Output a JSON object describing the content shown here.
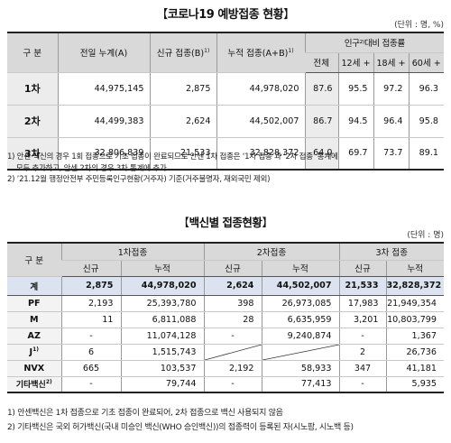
{
  "section1": {
    "title": "코로나19 예방접종 현황",
    "unit": "(단위 : 명, %)",
    "headers": {
      "category": "구 분",
      "prev_total": "전일 누계(A)",
      "new": "신규 접종(B)",
      "new_sup": "1)",
      "cumulative": "누적 접종(A+B)",
      "cumulative_sup": "1)",
      "rate_group": "인구²⁾대비 접종률",
      "rate_all": "전체",
      "rate_12": "12세 +",
      "rate_18": "18세 +",
      "rate_60": "60세 +"
    },
    "rows": [
      {
        "label": "1차",
        "prev": "44,975,145",
        "new": "2,875",
        "cum": "44,978,020",
        "all": "87.6",
        "r12": "95.5",
        "r18": "97.2",
        "r60": "96.3"
      },
      {
        "label": "2차",
        "prev": "44,499,383",
        "new": "2,624",
        "cum": "44,502,007",
        "all": "86.7",
        "r12": "94.5",
        "r18": "96.4",
        "r60": "95.8"
      },
      {
        "label": "3차",
        "prev": "32,806,839",
        "new": "21,533",
        "cum": "32,828,372",
        "all": "64.0",
        "r12": "69.7",
        "r18": "73.7",
        "r60": "89.1"
      }
    ],
    "notes": [
      "1) 안센 백신의 경우 1회 접종으로 기초 접종이 완료되므로 안센 1차 접종은 ‘1차 접종’과 ‘2차 접종’ 통계에",
      "    모두 추가하고, 안센 2차의 경우 3차 통계에 추가",
      "2) ’21.12월 행정안전부 주민등록인구현황(거주자) 기준(거주불명자, 재외국민 제외)"
    ]
  },
  "section2": {
    "title": "백신별 접종현황",
    "unit": "(단위 : 명)",
    "headers": {
      "category": "구 분",
      "dose1": "1차접종",
      "dose2": "2차접종",
      "dose3": "3차 접종",
      "new": "신규",
      "cum": "누적"
    },
    "rows": [
      {
        "label": "계",
        "sup": "",
        "d1n": "2,875",
        "d1c": "44,978,020",
        "d2n": "2,624",
        "d2c": "44,502,007",
        "d3n": "21,533",
        "d3c": "32,828,372"
      },
      {
        "label": "PF",
        "sup": "",
        "d1n": "2,193",
        "d1c": "25,393,780",
        "d2n": "398",
        "d2c": "26,973,085",
        "d3n": "17,983",
        "d3c": "21,949,354"
      },
      {
        "label": "M",
        "sup": "",
        "d1n": "11",
        "d1c": "6,811,088",
        "d2n": "28",
        "d2c": "6,635,959",
        "d3n": "3,201",
        "d3c": "10,803,799"
      },
      {
        "label": "AZ",
        "sup": "",
        "d1n": "-",
        "d1c": "11,074,128",
        "d2n": "-",
        "d2c": "9,240,874",
        "d3n": "-",
        "d3c": "1,367"
      },
      {
        "label": "J",
        "sup": "1)",
        "d1n": "6",
        "d1c": "1,515,743",
        "d2n": "",
        "d2c": "",
        "d3n": "2",
        "d3c": "26,736"
      },
      {
        "label": "NVX",
        "sup": "",
        "d1n": "665",
        "d1c": "103,537",
        "d2n": "2,192",
        "d2c": "58,933",
        "d3n": "347",
        "d3c": "41,181"
      },
      {
        "label": "기타백신",
        "sup": "2)",
        "d1n": "-",
        "d1c": "79,744",
        "d2n": "-",
        "d2c": "77,413",
        "d3n": "-",
        "d3c": "5,935"
      }
    ],
    "notes": [
      "1) 안센백신은 1차 접종으로 기초 접종이 완료되어, 2차 접종으로 백신 사용되지 않음",
      "2) 기타백신은 국외 허가백신(국내 미승인 백신(WHO 승인백신))의 접종력이 등록된 자(시노팜, 시노백 등)"
    ]
  }
}
